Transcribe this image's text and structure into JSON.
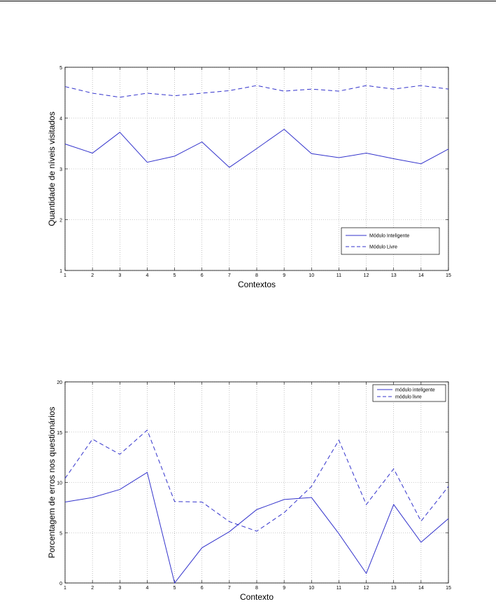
{
  "chart_data": [
    {
      "type": "line",
      "title": "",
      "xlabel": "Contextos",
      "ylabel": "Quantidade de níveis visitados",
      "xlim": [
        1,
        15
      ],
      "ylim": [
        1,
        5
      ],
      "xticks": [
        "1",
        "2",
        "3",
        "4",
        "5",
        "6",
        "7",
        "8",
        "9",
        "10",
        "11",
        "12",
        "13",
        "14",
        "15"
      ],
      "yticks": [
        "1",
        "2",
        "3",
        "4",
        "5"
      ],
      "grid": true,
      "legend_position": "bottom-right",
      "x": [
        1,
        2,
        3,
        4,
        5,
        6,
        7,
        8,
        9,
        10,
        11,
        12,
        13,
        14,
        15
      ],
      "series": [
        {
          "name": "Módulo Inteligente",
          "style": "solid",
          "color": "#3333cc",
          "values": [
            3.49,
            3.31,
            3.72,
            3.13,
            3.25,
            3.53,
            3.03,
            3.4,
            3.78,
            3.3,
            3.22,
            3.31,
            3.2,
            3.1,
            3.39
          ]
        },
        {
          "name": "Módulo Livre",
          "style": "dashed",
          "color": "#3333cc",
          "values": [
            4.62,
            4.49,
            4.41,
            4.49,
            4.44,
            4.49,
            4.54,
            4.64,
            4.53,
            4.57,
            4.53,
            4.64,
            4.57,
            4.64,
            4.57
          ]
        }
      ]
    },
    {
      "type": "line",
      "title": "",
      "xlabel": "Contexto",
      "ylabel": "Porcentagem de erros nos questionários",
      "xlim": [
        1,
        15
      ],
      "ylim": [
        0,
        20
      ],
      "xticks": [
        "1",
        "2",
        "3",
        "4",
        "5",
        "6",
        "7",
        "8",
        "9",
        "10",
        "11",
        "12",
        "13",
        "14",
        "15"
      ],
      "yticks": [
        "0",
        "5",
        "10",
        "15",
        "20"
      ],
      "grid": true,
      "legend_position": "top-right",
      "x": [
        1,
        2,
        3,
        4,
        5,
        6,
        7,
        8,
        9,
        10,
        11,
        12,
        13,
        14,
        15
      ],
      "series": [
        {
          "name": "módulo inteligente",
          "style": "solid",
          "color": "#3333cc",
          "values": [
            8.05,
            8.5,
            9.3,
            11.0,
            0.0,
            3.5,
            5.1,
            7.3,
            8.3,
            8.5,
            4.9,
            0.95,
            7.8,
            4.05,
            6.4
          ]
        },
        {
          "name": "módulo livre",
          "style": "dashed",
          "color": "#3333cc",
          "values": [
            10.4,
            14.3,
            12.8,
            15.2,
            8.1,
            8.05,
            6.1,
            5.15,
            7.0,
            9.6,
            14.2,
            7.8,
            11.35,
            6.15,
            9.6
          ]
        }
      ]
    }
  ]
}
